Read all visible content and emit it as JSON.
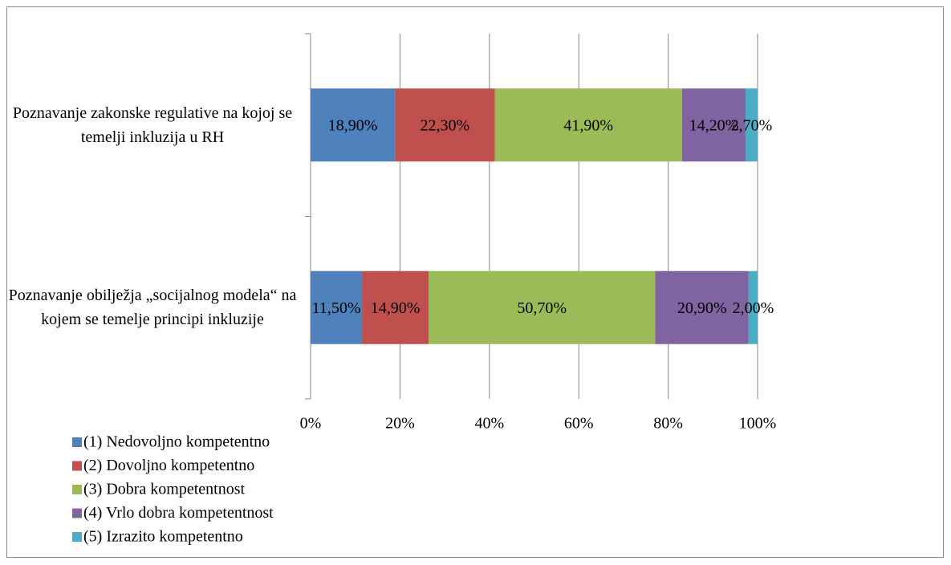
{
  "chart_data": {
    "type": "stacked-barh",
    "categories": [
      "Poznavanje zakonske regulative na kojoj se temelji inkluzija u RH",
      "Poznavanje obilježja „socijalnog modela“ na kojem se temelje principi inkluzije"
    ],
    "series": [
      {
        "name": "(1) Nedovoljno kompetentno",
        "color": "#4f81bd",
        "values": [
          18.9,
          11.5
        ],
        "value_labels": [
          "18,90%",
          "11,50%"
        ]
      },
      {
        "name": "(2) Dovoljno kompetentno",
        "color": "#c0504d",
        "values": [
          22.3,
          14.9
        ],
        "value_labels": [
          "22,30%",
          "14,90%"
        ]
      },
      {
        "name": "(3) Dobra kompetentnost",
        "color": "#9bbb59",
        "values": [
          41.9,
          50.7
        ],
        "value_labels": [
          "41,90%",
          "50,70%"
        ]
      },
      {
        "name": "(4) Vrlo dobra kompetentnost",
        "color": "#8064a2",
        "values": [
          14.2,
          20.9
        ],
        "value_labels": [
          "14,20%",
          "20,90%"
        ]
      },
      {
        "name": "(5) Izrazito kompetentno",
        "color": "#4bacc6",
        "values": [
          2.7,
          2.0
        ],
        "value_labels": [
          "2,70%",
          "2,00%"
        ]
      }
    ],
    "xlim": [
      0,
      100
    ],
    "xticks": [
      {
        "value": 0,
        "label": "0%"
      },
      {
        "value": 20,
        "label": "20%"
      },
      {
        "value": 40,
        "label": "40%"
      },
      {
        "value": 60,
        "label": "60%"
      },
      {
        "value": 80,
        "label": "80%"
      },
      {
        "value": 100,
        "label": "100%"
      }
    ],
    "grid": true,
    "legend": "bottom-left"
  }
}
